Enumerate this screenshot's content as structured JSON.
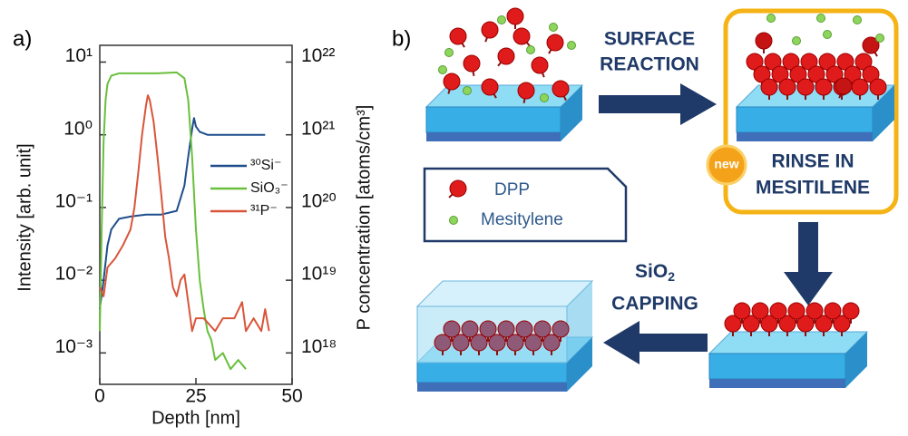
{
  "chart_data": {
    "type": "line",
    "panel_label": "a)",
    "xlabel": "Depth [nm]",
    "ylabel": "Intensity [arb. unit]",
    "y2label": "P concentration [atoms/cm³]",
    "xlim": [
      0,
      50
    ],
    "xticks": [
      0,
      25,
      50
    ],
    "ylim": [
      0.00037,
      17
    ],
    "log_y": true,
    "yticks": [
      {
        "value": 10,
        "label": "10¹"
      },
      {
        "value": 1,
        "label": "10⁰"
      },
      {
        "value": 0.1,
        "label": "10⁻¹"
      },
      {
        "value": 0.01,
        "label": "10⁻²"
      },
      {
        "value": 0.001,
        "label": "10⁻³"
      }
    ],
    "y2lim": [
      3.7e+17,
      1.7e+22
    ],
    "y2ticks": [
      {
        "value": 1e+22,
        "label": "10²²"
      },
      {
        "value": 1e+21,
        "label": "10²¹"
      },
      {
        "value": 1e+20,
        "label": "10²⁰"
      },
      {
        "value": 1e+19,
        "label": "10¹⁹"
      },
      {
        "value": 1e+18,
        "label": "10¹⁸"
      }
    ],
    "series": [
      {
        "name": "³⁰Si⁻",
        "color": "#1f4e8c",
        "x": [
          0,
          1,
          2,
          3,
          5,
          8,
          12,
          16,
          20,
          22,
          23,
          24,
          24.5,
          25,
          26,
          28,
          32,
          36,
          40,
          43
        ],
        "values": [
          0.004,
          0.01,
          0.03,
          0.05,
          0.07,
          0.075,
          0.08,
          0.08,
          0.09,
          0.2,
          0.5,
          1.2,
          1.7,
          1.3,
          1.1,
          1.0,
          1.0,
          1.0,
          1.0,
          1.0
        ]
      },
      {
        "name": "SiO₃⁻",
        "color": "#6abf3c",
        "x": [
          0,
          0.5,
          1,
          1.5,
          2,
          3,
          5,
          10,
          15,
          20,
          22,
          23,
          24,
          25,
          26,
          27,
          28,
          29,
          30,
          32,
          34,
          36,
          38
        ],
        "values": [
          0.002,
          0.05,
          0.8,
          3,
          5,
          6.5,
          7,
          7,
          7,
          7.2,
          6,
          3,
          0.5,
          0.05,
          0.01,
          0.004,
          0.002,
          0.0015,
          0.0008,
          0.001,
          0.0006,
          0.0008,
          0.0006
        ]
      },
      {
        "name": "³¹P⁻",
        "color": "#d9553a",
        "x": [
          0,
          1,
          2,
          4,
          6,
          8,
          9,
          10,
          11,
          12,
          12.5,
          13,
          14,
          15,
          16,
          17,
          18,
          19,
          20,
          21,
          22,
          23,
          24,
          25,
          27,
          30,
          32,
          35,
          37,
          38,
          40,
          42,
          43,
          44
        ],
        "values": [
          0.008,
          0.006,
          0.015,
          0.02,
          0.03,
          0.05,
          0.1,
          0.3,
          1,
          2.5,
          3.5,
          3.0,
          1.5,
          0.5,
          0.15,
          0.04,
          0.02,
          0.008,
          0.006,
          0.01,
          0.012,
          0.005,
          0.002,
          0.003,
          0.003,
          0.002,
          0.003,
          0.003,
          0.005,
          0.002,
          0.003,
          0.002,
          0.004,
          0.002
        ]
      }
    ]
  },
  "diagram": {
    "panel_label": "b)",
    "step1": [
      "SURFACE",
      "REACTION"
    ],
    "step2": [
      "RINSE IN",
      "MESITILENE"
    ],
    "badge": "new",
    "step3": {
      "main": "SiO",
      "sub": "2",
      "line2": "CAPPING"
    },
    "legend": [
      "DPP",
      "Mesitylene"
    ]
  }
}
